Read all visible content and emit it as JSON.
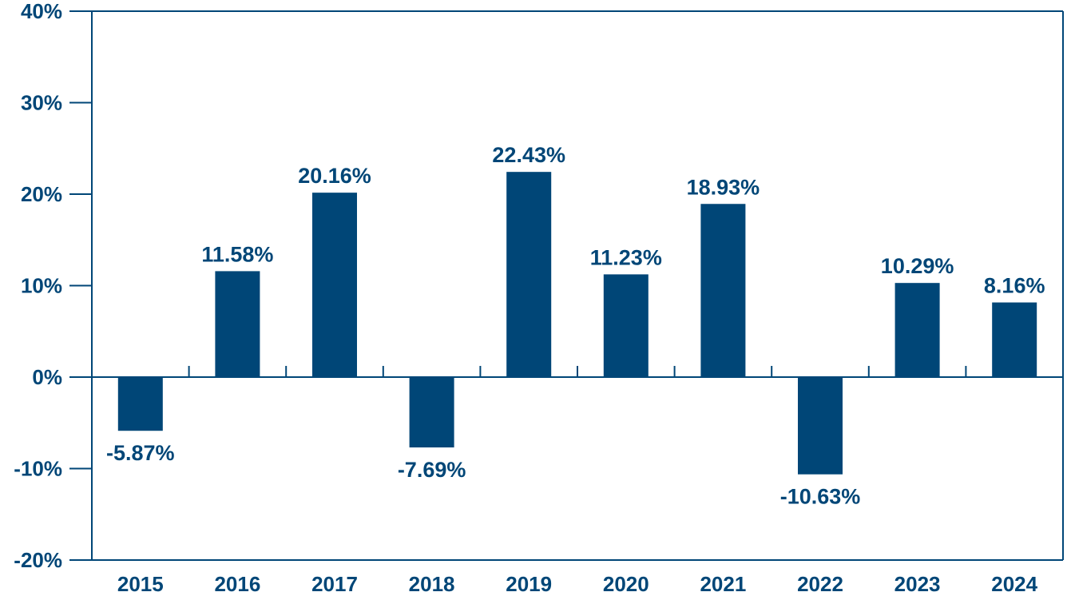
{
  "chart_data": {
    "type": "bar",
    "title": "",
    "xlabel": "",
    "ylabel": "",
    "categories": [
      "2015",
      "2016",
      "2017",
      "2018",
      "2019",
      "2020",
      "2021",
      "2022",
      "2023",
      "2024"
    ],
    "values": [
      -5.87,
      11.58,
      20.16,
      -7.69,
      22.43,
      11.23,
      18.93,
      -10.63,
      10.29,
      8.16
    ],
    "data_labels": [
      "-5.87%",
      "11.58%",
      "20.16%",
      "-7.69%",
      "22.43%",
      "11.23%",
      "18.93%",
      "-10.63%",
      "10.29%",
      "8.16%"
    ],
    "ylim": [
      -20,
      40
    ],
    "y_ticks": [
      40,
      30,
      20,
      10,
      0,
      -10,
      -20
    ],
    "y_tick_labels": [
      "40%",
      "30%",
      "20%",
      "10%",
      "0%",
      "-10%",
      "-20%"
    ],
    "grid": false,
    "legend": "none",
    "colors": {
      "bar": "#004677",
      "axis": "#004677",
      "text": "#004677"
    }
  }
}
